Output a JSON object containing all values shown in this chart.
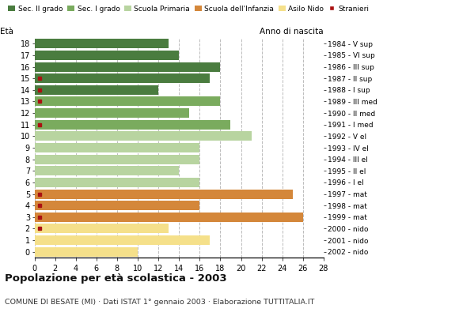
{
  "ages": [
    0,
    1,
    2,
    3,
    4,
    5,
    6,
    7,
    8,
    9,
    10,
    11,
    12,
    13,
    14,
    15,
    16,
    17,
    18
  ],
  "years": [
    "2002 - nido",
    "2001 - nido",
    "2000 - nido",
    "1999 - mat",
    "1998 - mat",
    "1997 - mat",
    "1996 - I el",
    "1995 - II el",
    "1994 - III el",
    "1993 - IV el",
    "1992 - V el",
    "1991 - I med",
    "1990 - II med",
    "1989 - III med",
    "1988 - I sup",
    "1987 - II sup",
    "1986 - III sup",
    "1985 - VI sup",
    "1984 - V sup"
  ],
  "values": [
    10,
    17,
    13,
    26,
    16,
    25,
    16,
    14,
    16,
    16,
    21,
    19,
    15,
    18,
    12,
    17,
    18,
    14,
    13
  ],
  "stranieri": [
    0,
    0,
    1,
    1,
    1,
    1,
    0,
    0,
    0,
    0,
    0,
    1,
    0,
    1,
    1,
    1,
    0,
    0,
    0
  ],
  "bar_colors_by_age": {
    "0": "#f5e08a",
    "1": "#f5e08a",
    "2": "#f5e08a",
    "3": "#d4873a",
    "4": "#d4873a",
    "5": "#d4873a",
    "6": "#b8d4a0",
    "7": "#b8d4a0",
    "8": "#b8d4a0",
    "9": "#b8d4a0",
    "10": "#b8d4a0",
    "11": "#7aab5e",
    "12": "#7aab5e",
    "13": "#7aab5e",
    "14": "#4a7c3f",
    "15": "#4a7c3f",
    "16": "#4a7c3f",
    "17": "#4a7c3f",
    "18": "#4a7c3f"
  },
  "stranieri_color": "#aa1111",
  "legend_labels": [
    "Sec. II grado",
    "Sec. I grado",
    "Scuola Primaria",
    "Scuola dell'Infanzia",
    "Asilo Nido",
    "Stranieri"
  ],
  "legend_colors": [
    "#4a7c3f",
    "#7aab5e",
    "#b8d4a0",
    "#d4873a",
    "#f5e08a",
    "#aa1111"
  ],
  "title": "Popolazione per età scolastica - 2003",
  "subtitle": "COMUNE DI BESATE (MI) · Dati ISTAT 1° gennaio 2003 · Elaborazione TUTTITALIA.IT",
  "label_eta": "Età",
  "label_anno": "Anno di nascita",
  "xlim": [
    0,
    28
  ],
  "xticks": [
    0,
    2,
    4,
    6,
    8,
    10,
    12,
    14,
    16,
    18,
    20,
    22,
    24,
    26,
    28
  ],
  "background_color": "#ffffff",
  "grid_color": "#bbbbbb"
}
